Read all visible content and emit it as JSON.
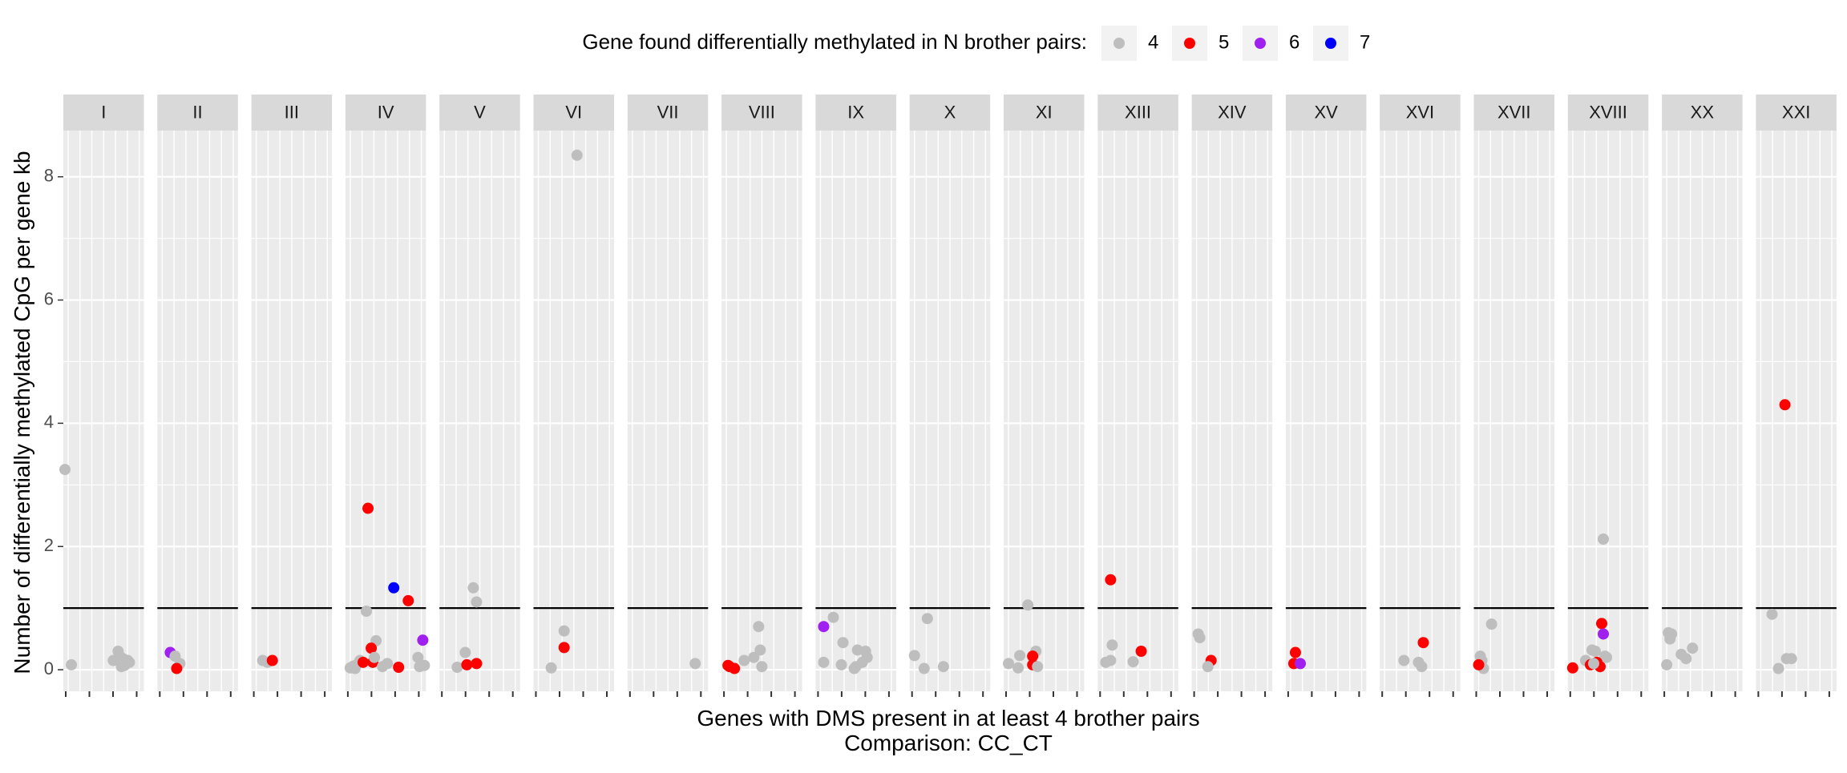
{
  "chart_data": {
    "type": "scatter",
    "facet_variable": "chromosome",
    "legend": {
      "title": "Gene found differentially methylated in N brother pairs:",
      "position": "top",
      "entries": [
        {
          "label": "4",
          "color": "#BEBEBE"
        },
        {
          "label": "5",
          "color": "#FF0000"
        },
        {
          "label": "6",
          "color": "#A020F0"
        },
        {
          "label": "7",
          "color": "#0000FF"
        }
      ]
    },
    "ylabel": "Number of differentially methylated CpG per gene kb",
    "xlabel": "Genes with DMS present in at least 4 brother pairs",
    "caption": "Comparison: CC_CT",
    "ylim": [
      -0.35,
      8.75
    ],
    "yticks": [
      "0",
      "2",
      "4",
      "6",
      "8"
    ],
    "reference_line_y": 1,
    "panel_background": "#EBEBEB",
    "strip_background": "#D9D9D9",
    "facets": [
      {
        "label": "I",
        "points": [
          [
            0.02,
            3.25,
            4
          ],
          [
            0.1,
            0.08,
            4
          ],
          [
            0.68,
            0.3,
            4
          ],
          [
            0.62,
            0.15,
            4
          ],
          [
            0.74,
            0.18,
            4
          ],
          [
            0.76,
            0.07,
            4
          ],
          [
            0.82,
            0.12,
            4
          ],
          [
            0.72,
            0.05,
            4
          ],
          [
            0.8,
            0.15,
            4
          ],
          [
            0.7,
            0.22,
            4
          ]
        ]
      },
      {
        "label": "II",
        "points": [
          [
            0.16,
            0.28,
            6
          ],
          [
            0.22,
            0.22,
            4
          ],
          [
            0.28,
            0.1,
            4
          ],
          [
            0.24,
            0.02,
            5
          ]
        ]
      },
      {
        "label": "III",
        "points": [
          [
            0.14,
            0.15,
            4
          ],
          [
            0.2,
            0.12,
            4
          ],
          [
            0.26,
            0.15,
            5
          ]
        ]
      },
      {
        "label": "IV",
        "points": [
          [
            0.28,
            2.62,
            5
          ],
          [
            0.6,
            1.33,
            7
          ],
          [
            0.78,
            1.12,
            5
          ],
          [
            0.26,
            0.95,
            4
          ],
          [
            0.38,
            0.47,
            4
          ],
          [
            0.96,
            0.48,
            6
          ],
          [
            0.32,
            0.35,
            5
          ],
          [
            0.1,
            0.06,
            4
          ],
          [
            0.12,
            0.02,
            4
          ],
          [
            0.14,
            0.08,
            4
          ],
          [
            0.18,
            0.15,
            4
          ],
          [
            0.22,
            0.12,
            5
          ],
          [
            0.34,
            0.12,
            5
          ],
          [
            0.36,
            0.2,
            4
          ],
          [
            0.46,
            0.05,
            4
          ],
          [
            0.52,
            0.1,
            4
          ],
          [
            0.66,
            0.04,
            5
          ],
          [
            0.9,
            0.2,
            4
          ],
          [
            0.92,
            0.05,
            4
          ],
          [
            0.98,
            0.07,
            4
          ],
          [
            0.06,
            0.03,
            4
          ]
        ]
      },
      {
        "label": "V",
        "points": [
          [
            0.42,
            1.33,
            4
          ],
          [
            0.46,
            1.1,
            4
          ],
          [
            0.32,
            0.28,
            4
          ],
          [
            0.22,
            0.04,
            4
          ],
          [
            0.34,
            0.08,
            5
          ],
          [
            0.46,
            0.1,
            5
          ]
        ]
      },
      {
        "label": "VI",
        "points": [
          [
            0.54,
            8.35,
            4
          ],
          [
            0.38,
            0.63,
            4
          ],
          [
            0.38,
            0.36,
            5
          ],
          [
            0.22,
            0.03,
            4
          ]
        ]
      },
      {
        "label": "VII",
        "points": [
          [
            0.84,
            0.1,
            4
          ]
        ]
      },
      {
        "label": "VIII",
        "points": [
          [
            0.46,
            0.7,
            4
          ],
          [
            0.48,
            0.32,
            4
          ],
          [
            0.28,
            0.15,
            4
          ],
          [
            0.4,
            0.2,
            4
          ],
          [
            0.08,
            0.07,
            5
          ],
          [
            0.16,
            0.02,
            5
          ],
          [
            0.5,
            0.05,
            4
          ],
          [
            0.1,
            0.05,
            5
          ]
        ]
      },
      {
        "label": "IX",
        "points": [
          [
            0.22,
            0.85,
            4
          ],
          [
            0.1,
            0.7,
            6
          ],
          [
            0.34,
            0.44,
            4
          ],
          [
            0.52,
            0.32,
            4
          ],
          [
            0.62,
            0.3,
            4
          ],
          [
            0.1,
            0.12,
            4
          ],
          [
            0.32,
            0.08,
            4
          ],
          [
            0.5,
            0.05,
            4
          ],
          [
            0.58,
            0.12,
            4
          ],
          [
            0.64,
            0.2,
            4
          ],
          [
            0.48,
            0.02,
            4
          ]
        ]
      },
      {
        "label": "X",
        "points": [
          [
            0.22,
            0.83,
            4
          ],
          [
            0.06,
            0.23,
            4
          ],
          [
            0.18,
            0.02,
            4
          ],
          [
            0.42,
            0.05,
            4
          ]
        ]
      },
      {
        "label": "XI",
        "points": [
          [
            0.3,
            1.05,
            4
          ],
          [
            0.4,
            0.3,
            4
          ],
          [
            0.2,
            0.23,
            4
          ],
          [
            0.36,
            0.22,
            5
          ],
          [
            0.36,
            0.08,
            5
          ],
          [
            0.06,
            0.1,
            4
          ],
          [
            0.42,
            0.05,
            4
          ],
          [
            0.18,
            0.03,
            4
          ]
        ]
      },
      {
        "label": "XIII",
        "points": [
          [
            0.16,
            1.46,
            5
          ],
          [
            0.18,
            0.4,
            4
          ],
          [
            0.54,
            0.3,
            5
          ],
          [
            0.1,
            0.12,
            4
          ],
          [
            0.16,
            0.15,
            4
          ],
          [
            0.44,
            0.13,
            4
          ]
        ]
      },
      {
        "label": "XIV",
        "points": [
          [
            0.08,
            0.58,
            4
          ],
          [
            0.1,
            0.52,
            4
          ],
          [
            0.24,
            0.15,
            5
          ],
          [
            0.2,
            0.05,
            4
          ]
        ]
      },
      {
        "label": "XV",
        "points": [
          [
            0.12,
            0.28,
            5
          ],
          [
            0.1,
            0.1,
            5
          ],
          [
            0.18,
            0.1,
            6
          ]
        ]
      },
      {
        "label": "XVI",
        "points": [
          [
            0.54,
            0.44,
            5
          ],
          [
            0.3,
            0.15,
            4
          ],
          [
            0.48,
            0.12,
            4
          ],
          [
            0.52,
            0.05,
            4
          ]
        ]
      },
      {
        "label": "XVII",
        "points": [
          [
            0.22,
            0.74,
            4
          ],
          [
            0.08,
            0.22,
            4
          ],
          [
            0.1,
            0.15,
            4
          ],
          [
            0.12,
            0.02,
            4
          ],
          [
            0.06,
            0.08,
            5
          ]
        ]
      },
      {
        "label": "XVIII",
        "points": [
          [
            0.44,
            2.12,
            4
          ],
          [
            0.42,
            0.75,
            5
          ],
          [
            0.44,
            0.58,
            6
          ],
          [
            0.3,
            0.32,
            4
          ],
          [
            0.34,
            0.3,
            4
          ],
          [
            0.46,
            0.22,
            4
          ],
          [
            0.48,
            0.2,
            4
          ],
          [
            0.22,
            0.15,
            4
          ],
          [
            0.28,
            0.08,
            5
          ],
          [
            0.36,
            0.12,
            5
          ],
          [
            0.4,
            0.05,
            5
          ],
          [
            0.06,
            0.03,
            5
          ],
          [
            0.32,
            0.1,
            4
          ]
        ]
      },
      {
        "label": "XX",
        "points": [
          [
            0.08,
            0.6,
            4
          ],
          [
            0.12,
            0.58,
            4
          ],
          [
            0.1,
            0.5,
            4
          ],
          [
            0.38,
            0.35,
            4
          ],
          [
            0.24,
            0.25,
            4
          ],
          [
            0.3,
            0.18,
            4
          ],
          [
            0.06,
            0.08,
            4
          ]
        ]
      },
      {
        "label": "XXI",
        "points": [
          [
            0.36,
            4.3,
            5
          ],
          [
            0.2,
            0.9,
            4
          ],
          [
            0.38,
            0.18,
            4
          ],
          [
            0.44,
            0.18,
            4
          ],
          [
            0.28,
            0.02,
            4
          ]
        ]
      }
    ]
  }
}
